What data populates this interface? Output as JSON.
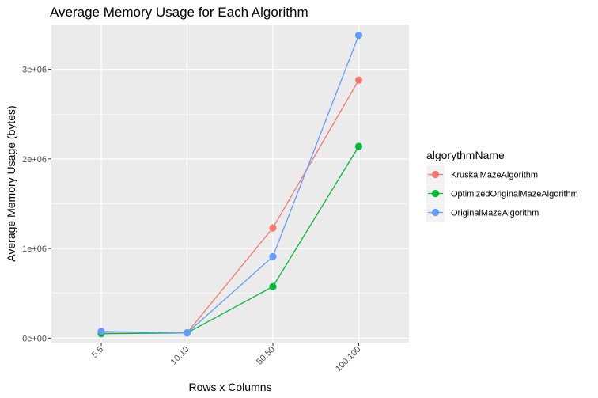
{
  "chart_data": {
    "type": "line",
    "title": "Average Memory Usage for Each Algorithm",
    "xlabel": "Rows x Columns",
    "ylabel": "Average Memory Usage (bytes)",
    "categories": [
      "5.5",
      "10.10",
      "50.50",
      "100.100"
    ],
    "ylim": [
      -50000,
      3500000
    ],
    "y_ticks": [
      0,
      1000000,
      2000000,
      3000000
    ],
    "y_tick_labels": [
      "0e+00",
      "1e+06",
      "2e+06",
      "3e+06"
    ],
    "grid": true,
    "legend": {
      "title": "algorythmName",
      "placement": "right"
    },
    "series": [
      {
        "name": "KruskalMazeAlgorithm",
        "color": "#F8766D",
        "values": [
          55000,
          60000,
          1230000,
          2880000
        ]
      },
      {
        "name": "OptimizedOriginalMazeAlgorithm",
        "color": "#00BA38",
        "values": [
          50000,
          58000,
          575000,
          2140000
        ]
      },
      {
        "name": "OriginalMazeAlgorithm",
        "color": "#619CFF",
        "values": [
          75000,
          58000,
          910000,
          3380000
        ]
      }
    ]
  }
}
